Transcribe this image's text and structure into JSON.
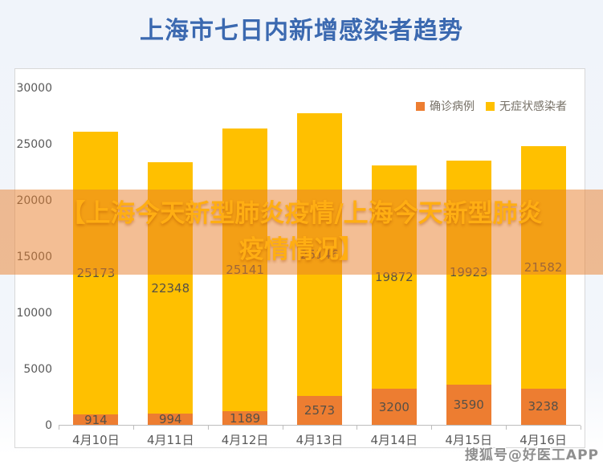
{
  "title": "上海市七日内新增感染者趋势",
  "watermark": {
    "line1": "【上海今天新型肺炎疫情/上海今天新型肺炎",
    "line2": "疫情情况】",
    "bottom_right": "搜狐号@好医工APP"
  },
  "colors": {
    "title_blue": "#3b69b0",
    "confirmed_orange": "#ED7D31",
    "asymptomatic_yellow": "#FFC000",
    "watermark_band": "rgba(232,125,42,0.5)",
    "watermark_text": "#ffae13",
    "value_label": "#565047",
    "axis_text": "#595959"
  },
  "chart_data": {
    "type": "bar",
    "stacked": true,
    "title": "上海市七日内新增感染者趋势",
    "categories": [
      "4月10日",
      "4月11日",
      "4月12日",
      "4月13日",
      "4月14日",
      "4月15日",
      "4月16日"
    ],
    "series": [
      {
        "name": "确诊病例",
        "color": "#ED7D31",
        "values": [
          914,
          994,
          1189,
          2573,
          3200,
          3590,
          3238
        ]
      },
      {
        "name": "无症状感染者",
        "color": "#FFC000",
        "values": [
          25173,
          22348,
          25141,
          25146,
          19872,
          19923,
          21582
        ],
        "label_occluded_by_watermark": [
          false,
          false,
          false,
          true,
          false,
          false,
          false
        ]
      }
    ],
    "xlabel": "",
    "ylabel": "",
    "ylim": [
      0,
      30000
    ],
    "yticks": [
      0,
      5000,
      10000,
      15000,
      20000,
      25000,
      30000
    ],
    "grid": false,
    "legend_position": "top-right"
  }
}
